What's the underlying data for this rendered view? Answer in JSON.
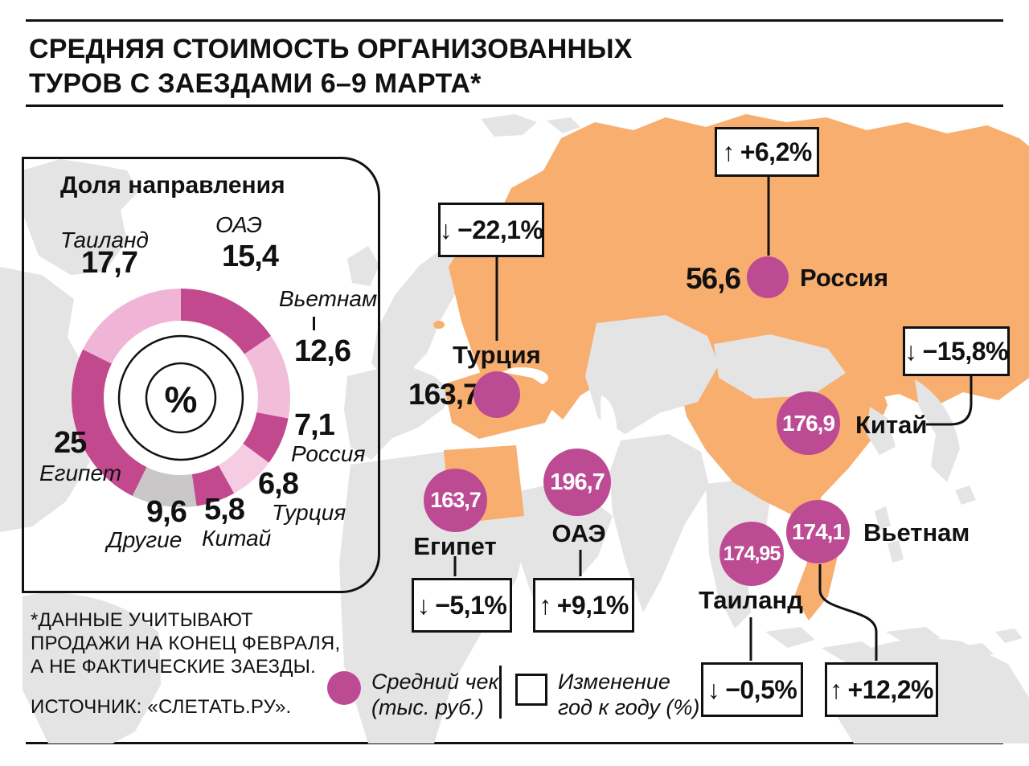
{
  "title": {
    "line1": "СРЕДНЯЯ СТОИМОСТЬ ОРГАНИЗОВАННЫХ",
    "line2": "ТУРОВ С ЗАЕЗДАМИ 6–9 МАРТА*"
  },
  "share_panel": {
    "title": "Доля направления",
    "center_symbol": "%"
  },
  "chart_data": {
    "type": "donut",
    "title": "Доля направления",
    "unit": "%",
    "start_angle_deg": 0,
    "clockwise": true,
    "segments": [
      {
        "label": "ОАЭ",
        "value": 15.4,
        "display": "15,4",
        "color": "#c3498f"
      },
      {
        "label": "Вьетнам",
        "value": 12.6,
        "display": "12,6",
        "color": "#f2bdd9"
      },
      {
        "label": "Россия",
        "value": 7.1,
        "display": "7,1",
        "color": "#c3498f"
      },
      {
        "label": "Турция",
        "value": 6.8,
        "display": "6,8",
        "color": "#f5cce1"
      },
      {
        "label": "Китай",
        "value": 5.8,
        "display": "5,8",
        "color": "#c3498f"
      },
      {
        "label": "Другие",
        "value": 9.6,
        "display": "9,6",
        "color": "#c9c7c8"
      },
      {
        "label": "Египет",
        "value": 25,
        "display": "25",
        "color": "#c3498f"
      },
      {
        "label": "Таиланд",
        "value": 17.7,
        "display": "17,7",
        "color": "#f0b5d6"
      }
    ]
  },
  "map": {
    "destinations": [
      {
        "name": "Россия",
        "avg_check": "56,6",
        "arrow": "↑",
        "change": "+6,2%",
        "direction": "up"
      },
      {
        "name": "Турция",
        "avg_check": "163,7",
        "arrow": "↓",
        "change": "−22,1%",
        "direction": "down"
      },
      {
        "name": "Египет",
        "avg_check": "163,7",
        "arrow": "↓",
        "change": "−5,1%",
        "direction": "down"
      },
      {
        "name": "ОАЭ",
        "avg_check": "196,7",
        "arrow": "↑",
        "change": "+9,1%",
        "direction": "up"
      },
      {
        "name": "Китай",
        "avg_check": "176,9",
        "arrow": "↓",
        "change": "−15,8%",
        "direction": "down"
      },
      {
        "name": "Вьетнам",
        "avg_check": "174,1",
        "arrow": "↑",
        "change": "+12,2%",
        "direction": "up"
      },
      {
        "name": "Таиланд",
        "avg_check": "174,95",
        "arrow": "↓",
        "change": "−0,5%",
        "direction": "down"
      }
    ],
    "colors": {
      "land": "#e4e4e4",
      "highlight": "#f8ae6e",
      "check_circle": "#bd4b94"
    }
  },
  "legend": {
    "avg_check_line1": "Средний чек",
    "avg_check_line2": "(тыс. руб.)",
    "change_line1": "Изменение",
    "change_line2": "год к году (%)"
  },
  "footnote": {
    "line1": "*ДАННЫЕ УЧИТЫВАЮТ",
    "line2": "ПРОДАЖИ НА КОНЕЦ ФЕВРАЛЯ,",
    "line3": "А НЕ ФАКТИЧЕСКИЕ ЗАЕЗДЫ.",
    "source": "ИСТОЧНИК: «СЛЕТАТЬ.РУ»."
  }
}
